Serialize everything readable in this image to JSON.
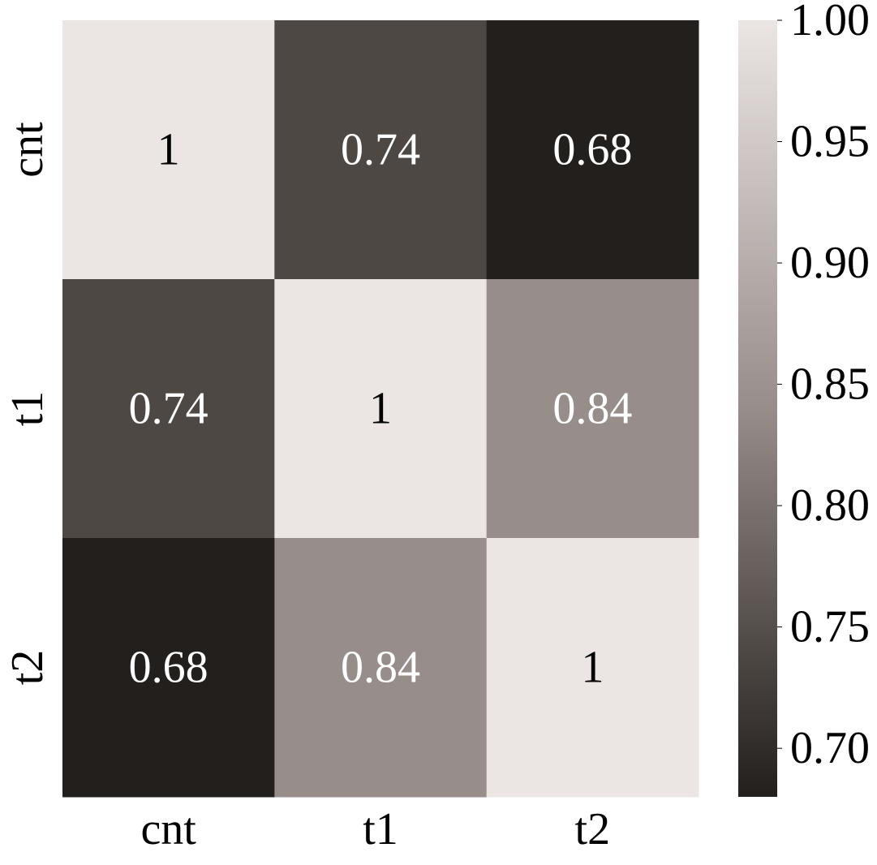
{
  "chart_data": {
    "type": "heatmap",
    "x_labels": [
      "cnt",
      "t1",
      "t2"
    ],
    "y_labels": [
      "cnt",
      "t1",
      "t2"
    ],
    "values": [
      [
        1,
        0.74,
        0.68
      ],
      [
        0.74,
        1,
        0.84
      ],
      [
        0.68,
        0.84,
        1
      ]
    ],
    "cell_labels": [
      [
        "1",
        "0.74",
        "0.68"
      ],
      [
        "0.74",
        "1",
        "0.84"
      ],
      [
        "0.68",
        "0.84",
        "1"
      ]
    ],
    "colorbar": {
      "min": 0.68,
      "max": 1.0,
      "ticks": [
        0.7,
        0.75,
        0.8,
        0.85,
        0.9,
        0.95,
        1.0
      ],
      "tick_labels": [
        "0.70",
        "0.75",
        "0.80",
        "0.85",
        "0.90",
        "0.95",
        "1.00"
      ]
    },
    "colors": {
      "low": "#231f1c",
      "mid": "#978d8a",
      "high": "#ebe5e3",
      "label_text": "#ffffff",
      "label_text_on_light": "#000000"
    }
  }
}
